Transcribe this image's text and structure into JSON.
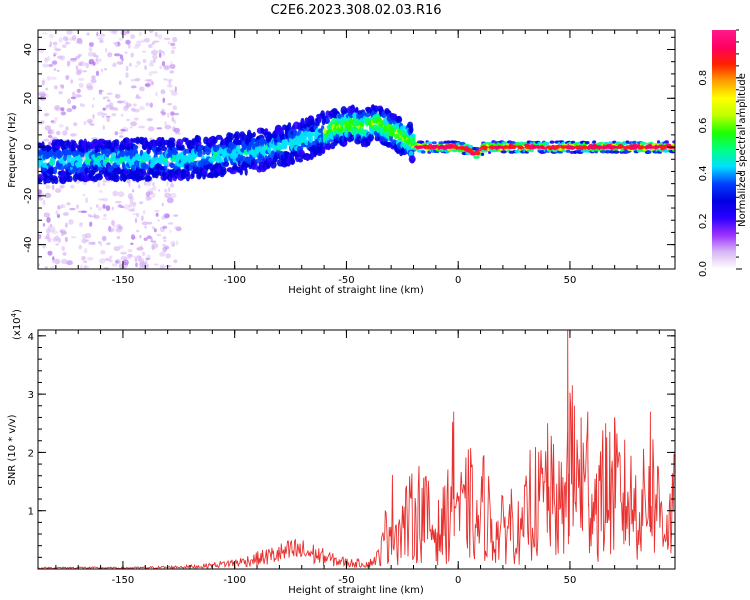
{
  "title": "C2E6.2023.308.02.03.R16",
  "chart_data": [
    {
      "type": "heatmap",
      "xlabel": "Height of straight line (km)",
      "ylabel": "Frequency (Hz)",
      "xlim": [
        -188,
        97
      ],
      "ylim": [
        -50,
        48
      ],
      "x_ticks": [
        -150,
        -100,
        -50,
        0,
        50
      ],
      "x_tick_labels": [
        "-150",
        "-100",
        "-50",
        "0",
        "50"
      ],
      "y_ticks": [
        -40,
        -20,
        0,
        20,
        40
      ],
      "y_tick_labels": [
        "-40",
        "-20",
        "0",
        "20",
        "40"
      ],
      "ridge": {
        "x": [
          -188,
          -150,
          -125,
          -100,
          -80,
          -65,
          -55,
          -48,
          -42,
          -37,
          -32,
          -28,
          -24,
          -20,
          -17,
          -10,
          0,
          5,
          8,
          12,
          20,
          50,
          97
        ],
        "freq": [
          -6,
          -5,
          -5,
          -3,
          0,
          4,
          8,
          9,
          8,
          10,
          8,
          6,
          4,
          1,
          0,
          0,
          0,
          -1,
          -3,
          0,
          0,
          0,
          0
        ]
      },
      "colorbar": {
        "label": "Normalized spectral amplitude",
        "range": [
          0,
          1
        ],
        "ticks": [
          0.0,
          0.2,
          0.4,
          0.6,
          0.8
        ],
        "tick_labels": [
          "0.0",
          "0.2",
          "0.4",
          "0.6",
          "0.8"
        ],
        "colors": [
          "#ffffff",
          "#d9b8f5",
          "#9b30ff",
          "#2a00ff",
          "#0000e0",
          "#0040ff",
          "#00e0ff",
          "#00ff80",
          "#20ff00",
          "#c0ff00",
          "#ffff00",
          "#ffa000",
          "#ff2000",
          "#ff0060",
          "#ff1a8c"
        ]
      }
    },
    {
      "type": "line",
      "xlabel": "Height of straight line (km)",
      "ylabel": "SNR (10 * v/v)",
      "y_scale_label_base": "(x10",
      "y_scale_label_exp": "4",
      "y_scale_label_close": ")",
      "xlim": [
        -188,
        97
      ],
      "ylim": [
        0,
        4.1
      ],
      "x_ticks": [
        -150,
        -100,
        -50,
        0,
        50
      ],
      "x_tick_labels": [
        "-150",
        "-100",
        "-50",
        "0",
        "50"
      ],
      "y_ticks": [
        1,
        2,
        3,
        4
      ],
      "y_tick_labels": [
        "1",
        "2",
        "3",
        "4"
      ],
      "series": [
        {
          "name": "SNR",
          "color": "#e8302e",
          "x": [
            -188,
            -170,
            -150,
            -130,
            -115,
            -105,
            -98,
            -90,
            -80,
            -72,
            -65,
            -55,
            -48,
            -40,
            -35,
            -30,
            -27,
            -24,
            -20,
            -16,
            -12,
            -8,
            -5,
            -2,
            2,
            5,
            8,
            12,
            16,
            20,
            25,
            28,
            32,
            36,
            40,
            44,
            48,
            49,
            52,
            55,
            58,
            62,
            66,
            70,
            74,
            78,
            82,
            86,
            90,
            94,
            97
          ],
          "values": [
            0.03,
            0.04,
            0.03,
            0.05,
            0.08,
            0.15,
            0.2,
            0.3,
            0.45,
            0.55,
            0.45,
            0.25,
            0.18,
            0.15,
            0.4,
            1.8,
            1.2,
            1.5,
            1.7,
            2.0,
            1.3,
            1.2,
            1.7,
            2.7,
            1.6,
            2.3,
            1.2,
            2.2,
            1.0,
            1.3,
            1.7,
            0.9,
            2.2,
            2.1,
            2.5,
            2.0,
            1.8,
            4.1,
            2.8,
            2.6,
            2.7,
            2.2,
            2.5,
            2.6,
            2.3,
            2.1,
            1.9,
            2.7,
            2.0,
            1.4,
            2.1
          ]
        }
      ]
    }
  ]
}
